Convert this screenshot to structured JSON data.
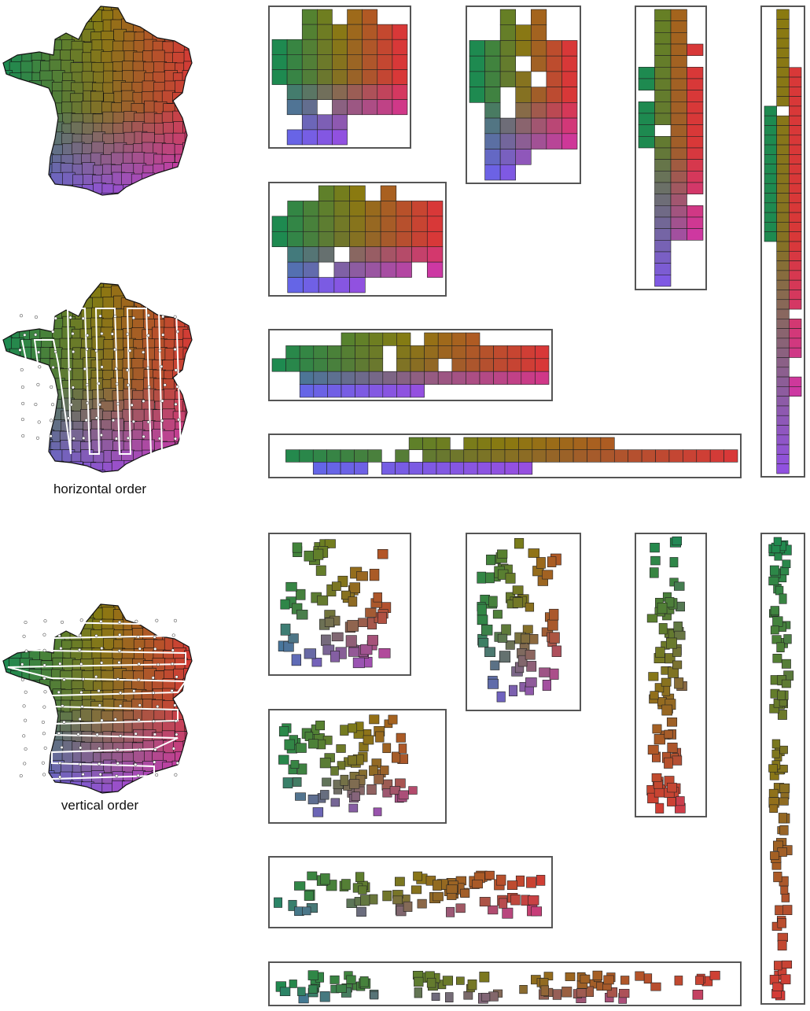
{
  "captions": {
    "horizontal": "horizontal order",
    "vertical": "vertical order"
  },
  "colors": {
    "corner_top": "#8a7a10",
    "corner_west": "#1e8a50",
    "corner_east": "#d83838",
    "corner_southwest": "#5a6ae8",
    "corner_southeast": "#c838d8",
    "border": "#555555",
    "region_line": "#111111",
    "path_line": "#ffffff"
  },
  "figure": {
    "maps": [
      {
        "label": "map-plain"
      },
      {
        "label": "map-horizontal-order"
      },
      {
        "label": "map-vertical-order"
      }
    ]
  }
}
